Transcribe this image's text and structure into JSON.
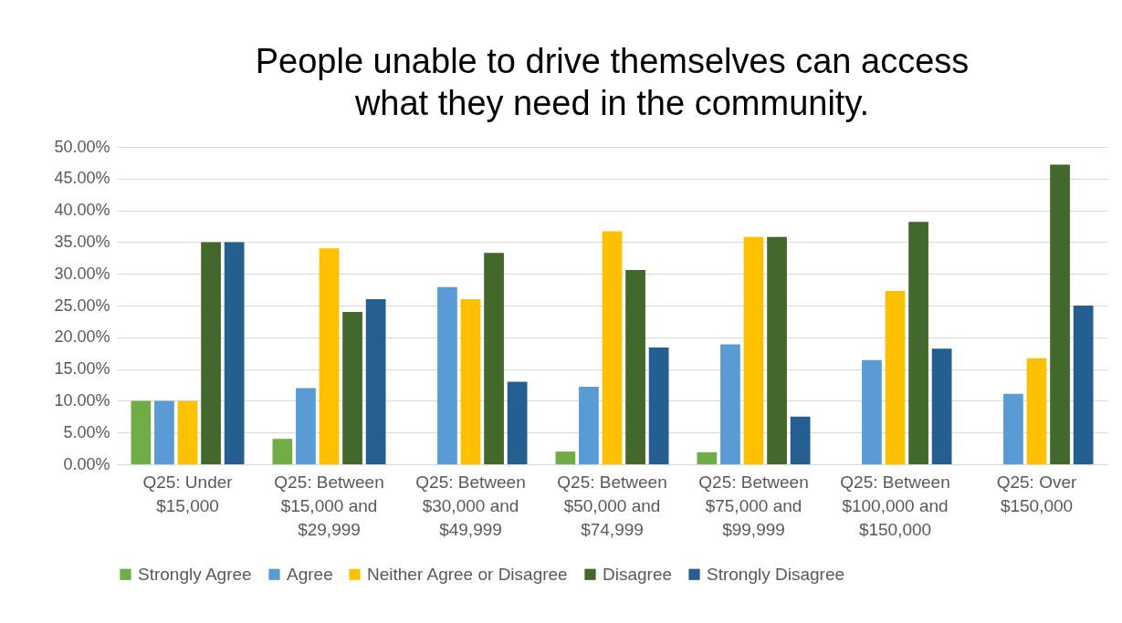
{
  "chart_data": {
    "type": "bar",
    "title": "People unable to drive themselves can access what they need in the community.",
    "categories": [
      "Q25: Under $15,000",
      "Q25: Between $15,000 and $29,999",
      "Q25: Between $30,000 and $49,999",
      "Q25: Between $50,000 and $74,999",
      "Q25: Between $75,000 and $99,999",
      "Q25: Between $100,000 and $150,000",
      "Q25: Over $150,000"
    ],
    "series": [
      {
        "name": "Strongly Agree",
        "color": "#70ad47",
        "values": [
          10,
          4,
          0,
          2,
          1.9,
          0,
          0
        ]
      },
      {
        "name": "Agree",
        "color": "#5b9bd5",
        "values": [
          10,
          12,
          27.9,
          12.2,
          18.9,
          16.4,
          11.1
        ]
      },
      {
        "name": "Neither Agree or Disagree",
        "color": "#ffc000",
        "values": [
          10,
          34,
          26,
          36.7,
          35.8,
          27.3,
          16.7
        ]
      },
      {
        "name": "Disagree",
        "color": "#43682b",
        "values": [
          35,
          24,
          33.3,
          30.6,
          35.8,
          38.2,
          47.2
        ]
      },
      {
        "name": "Strongly Disagree",
        "color": "#255e91",
        "values": [
          35,
          26,
          13,
          18.4,
          7.5,
          18.2,
          25
        ]
      }
    ],
    "ylim": [
      0,
      50
    ],
    "yticks": [
      {
        "value": 0,
        "label": "0.00%"
      },
      {
        "value": 5,
        "label": "5.00%"
      },
      {
        "value": 10,
        "label": "10.00%"
      },
      {
        "value": 15,
        "label": "15.00%"
      },
      {
        "value": 20,
        "label": "20.00%"
      },
      {
        "value": 25,
        "label": "25.00%"
      },
      {
        "value": 30,
        "label": "30.00%"
      },
      {
        "value": 35,
        "label": "35.00%"
      },
      {
        "value": 40,
        "label": "40.00%"
      },
      {
        "value": 45,
        "label": "45.00%"
      },
      {
        "value": 50,
        "label": "50.00%"
      }
    ],
    "grid": "y",
    "legend": "bottom"
  }
}
